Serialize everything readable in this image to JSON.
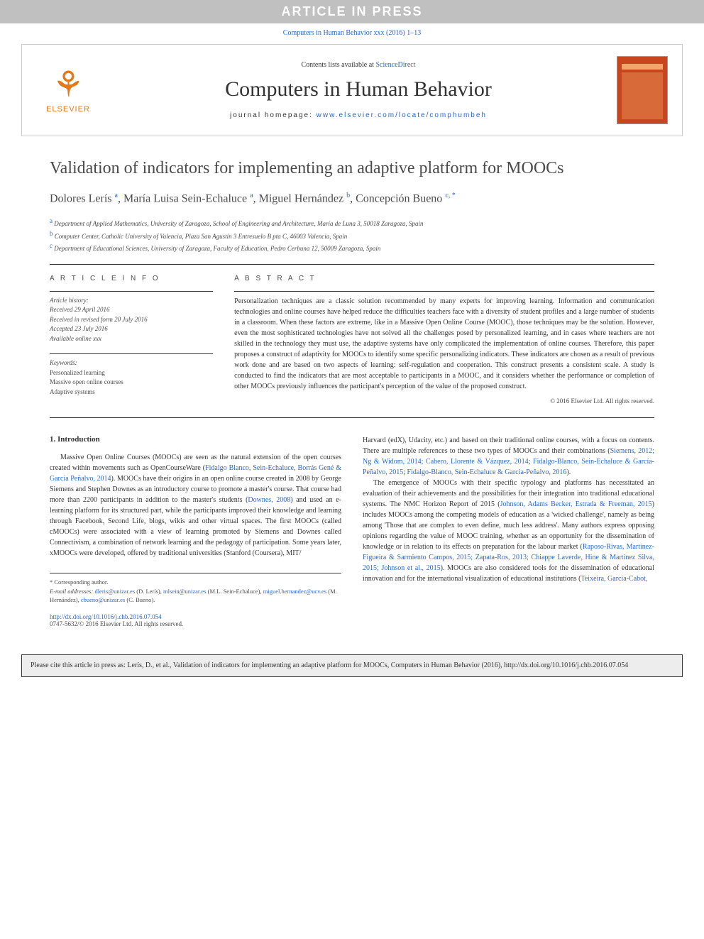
{
  "banner": "ARTICLE IN PRESS",
  "top_citation": "Computers in Human Behavior xxx (2016) 1–13",
  "header": {
    "publisher": "ELSEVIER",
    "contents_prefix": "Contents lists available at ",
    "contents_link": "ScienceDirect",
    "journal_name": "Computers in Human Behavior",
    "homepage_prefix": "journal homepage: ",
    "homepage_url": "www.elsevier.com/locate/comphumbeh"
  },
  "title": "Validation of indicators for implementing an adaptive platform for MOOCs",
  "authors_html": "Dolores Lerís <sup>a</sup>, María Luisa Sein-Echaluce <sup>a</sup>, Miguel Hernández <sup>b</sup>, Concepción Bueno <sup>c, *</sup>",
  "affiliations": [
    {
      "sup": "a",
      "text": "Department of Applied Mathematics, University of Zaragoza, School of Engineering and Architecture, María de Luna 3, 50018 Zaragoza, Spain"
    },
    {
      "sup": "b",
      "text": "Computer Center, Catholic University of Valencia, Plaza San Agustín 3 Entresuelo B pta C, 46003 Valencia, Spain"
    },
    {
      "sup": "c",
      "text": "Department of Educational Sciences, University of Zaragoza, Faculty of Education, Pedro Cerbuna 12, 50009 Zaragoza, Spain"
    }
  ],
  "article_info_label": "A R T I C L E   I N F O",
  "abstract_label": "A B S T R A C T",
  "history": {
    "hdr": "Article history:",
    "received": "Received 29 April 2016",
    "revised": "Received in revised form 20 July 2016",
    "accepted": "Accepted 23 July 2016",
    "online": "Available online xxx"
  },
  "keywords": {
    "hdr": "Keywords:",
    "items": [
      "Personalized learning",
      "Massive open online courses",
      "Adaptive systems"
    ]
  },
  "abstract": "Personalization techniques are a classic solution recommended by many experts for improving learning. Information and communication technologies and online courses have helped reduce the difficulties teachers face with a diversity of student profiles and a large number of students in a classroom. When these factors are extreme, like in a Massive Open Online Course (MOOC), those techniques may be the solution. However, even the most sophisticated technologies have not solved all the challenges posed by personalized learning, and in cases where teachers are not skilled in the technology they must use, the adaptive systems have only complicated the implementation of online courses. Therefore, this paper proposes a construct of adaptivity for MOOCs to identify some specific personalizing indicators. These indicators are chosen as a result of previous work done and are based on two aspects of learning: self-regulation and cooperation. This construct presents a consistent scale. A study is conducted to find the indicators that are most acceptable to participants in a MOOC, and it considers whether the performance or completion of other MOOCs previously influences the participant's perception of the value of the proposed construct.",
  "copyright": "© 2016 Elsevier Ltd. All rights reserved.",
  "intro_heading": "1. Introduction",
  "intro_col1": "Massive Open Online Courses (MOOCs) are seen as the natural extension of the open courses created within movements such as OpenCourseWare (<a>Fidalgo Blanco, Sein-Echaluce, Borrás Gené & García Peñalvo, 2014</a>). MOOCs have their origins in an open online course created in 2008 by George Siemens and Stephen Downes as an introductory course to promote a master's course. That course had more than 2200 participants in addition to the master's students (<a>Downes, 2008</a>) and used an e-learning platform for its structured part, while the participants improved their knowledge and learning through Facebook, Second Life, blogs, wikis and other virtual spaces. The first MOOCs (called cMOOCs) were associated with a view of learning promoted by Siemens and Downes called Connectivism, a combination of network learning and the pedagogy of participation. Some years later, xMOOCs were developed, offered by traditional universities (Stanford (Coursera), MIT/",
  "intro_col2": "Harvard (edX), Udacity, etc.) and based on their traditional online courses, with a focus on contents. There are multiple references to these two types of MOOCs and their combinations (<a>Siemens, 2012; Ng & Widom, 2014; Cabero, Llorente & Vázquez, 2014</a>; <a>Fidalgo-Blanco, Sein-Echaluce & García-Peñalvo, 2015</a>; <a>Fidalgo-Blanco, Sein-Echaluce & García-Peñalvo, 2016</a>).",
  "intro_col2_p2": "The emergence of MOOCs with their specific typology and platforms has necessitated an evaluation of their achievements and the possibilities for their integration into traditional educational systems. The NMC Horizon Report of 2015 (<a>Johnson, Adams Becker, Estrada & Freeman, 2015</a>) includes MOOCs among the competing models of education as a 'wicked challenge', namely as being among 'Those that are complex to even define, much less address'. Many authors express opposing opinions regarding the value of MOOC training, whether as an opportunity for the dissemination of knowledge or in relation to its effects on preparation for the labour market (<a>Raposo-Rivas, Martínez-Figueira & Sarmiento Campos, 2015; Zapata-Ros, 2013; Chiappe Laverde, Hine & Martínez Silva, 2015; Johnson et al., 2015</a>). MOOCs are also considered tools for the dissemination of educational innovation and for the international visualization of educational institutions (<a>Teixeira, Garcia-Cabot,</a>",
  "footnote": {
    "corr": "* Corresponding author.",
    "emails_label": "E-mail addresses:",
    "emails": "dleris@unizar.es (D. Lerís), mlsein@unizar.es (M.L. Sein-Echaluce), miguel.hernandez@ucv.es (M. Hernández), cbueno@unizar.es (C. Bueno)."
  },
  "doi": {
    "url": "http://dx.doi.org/10.1016/j.chb.2016.07.054",
    "issn_line": "0747-5632/© 2016 Elsevier Ltd. All rights reserved."
  },
  "cite_box": "Please cite this article in press as: Lerís, D., et al., Validation of indicators for implementing an adaptive platform for MOOCs, Computers in Human Behavior (2016), http://dx.doi.org/10.1016/j.chb.2016.07.054",
  "colors": {
    "link": "#2b66c4",
    "banner_bg": "#c0c0c0",
    "banner_fg": "#ffffff",
    "elsevier_orange": "#e67817",
    "cover_bg": "#c8451e",
    "text": "#333333",
    "cite_box_bg": "#ededed"
  },
  "typography": {
    "title_pt": 24,
    "journal_name_pt": 30,
    "authors_pt": 16,
    "body_pt": 10,
    "affil_pt": 9,
    "footnote_pt": 8.5
  }
}
